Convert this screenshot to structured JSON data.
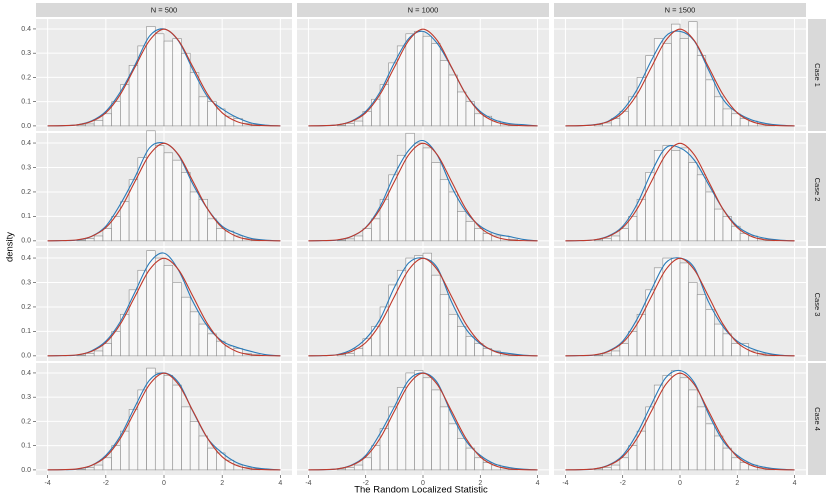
{
  "chart_data": {
    "type": "histogram",
    "x_label": "The Random Localized Statistic",
    "y_label": "density",
    "col_labels": [
      "N = 500",
      "N = 1000",
      "N = 1500"
    ],
    "row_labels": [
      "Case 1",
      "Case 2",
      "Case 3",
      "Case 4"
    ],
    "xlim": [
      -4.4,
      4.4
    ],
    "xticks": [
      -4,
      -2,
      0,
      2,
      4
    ],
    "ylim": [
      -0.021,
      0.441
    ],
    "yticks": [
      {
        "value": 0,
        "label": "0.0"
      },
      0.1,
      0.2,
      0.3,
      0.4
    ],
    "grid": true,
    "bar_color": "#8c8c8c",
    "kde_color": "#2a7ab8",
    "normal_color": "#c0392b",
    "bins": [
      -3,
      -2.7,
      -2.4,
      -2.1,
      -1.8,
      -1.5,
      -1.2,
      -0.9,
      -0.6,
      -0.3,
      0,
      0.3,
      0.6,
      0.9,
      1.2,
      1.5,
      1.8,
      2.1,
      2.4,
      2.7,
      3,
      3.3
    ],
    "curve_x": [
      -4,
      -3.5,
      -3,
      -2.5,
      -2,
      -1.5,
      -1,
      -0.5,
      0,
      0.5,
      1,
      1.5,
      2,
      2.5,
      3,
      3.5,
      4
    ],
    "normal": [
      0.0001,
      0.001,
      0.004,
      0.018,
      0.054,
      0.13,
      0.242,
      0.352,
      0.399,
      0.352,
      0.242,
      0.13,
      0.054,
      0.018,
      0.004,
      0.001,
      0.0001
    ],
    "panels": [
      {
        "counts": [
          0.004,
          0.008,
          0.022,
          0.05,
          0.1,
          0.17,
          0.25,
          0.33,
          0.41,
          0.38,
          0.35,
          0.36,
          0.3,
          0.22,
          0.12,
          0.1,
          0.07,
          0.04,
          0.03,
          0.01,
          0.005
        ],
        "kde": [
          0,
          0.001,
          0.004,
          0.02,
          0.06,
          0.14,
          0.25,
          0.37,
          0.4,
          0.35,
          0.23,
          0.12,
          0.07,
          0.035,
          0.012,
          0.003,
          0
        ]
      },
      {
        "counts": [
          0.003,
          0.01,
          0.02,
          0.06,
          0.11,
          0.17,
          0.26,
          0.33,
          0.38,
          0.39,
          0.37,
          0.34,
          0.27,
          0.21,
          0.14,
          0.1,
          0.05,
          0.04,
          0.02,
          0.01,
          0.006
        ],
        "kde": [
          0,
          0.001,
          0.004,
          0.02,
          0.06,
          0.14,
          0.26,
          0.36,
          0.39,
          0.34,
          0.24,
          0.13,
          0.06,
          0.025,
          0.01,
          0.005,
          0
        ]
      },
      {
        "counts": [
          0.005,
          0.012,
          0.03,
          0.06,
          0.12,
          0.2,
          0.29,
          0.36,
          0.34,
          0.42,
          0.36,
          0.43,
          0.29,
          0.19,
          0.12,
          0.07,
          0.05,
          0.03,
          0.02,
          0.01,
          0.004
        ],
        "kde": [
          0,
          0.001,
          0.005,
          0.02,
          0.065,
          0.15,
          0.27,
          0.37,
          0.39,
          0.35,
          0.23,
          0.11,
          0.055,
          0.025,
          0.01,
          0.003,
          0
        ]
      },
      {
        "counts": [
          0.003,
          0.009,
          0.02,
          0.05,
          0.1,
          0.16,
          0.25,
          0.34,
          0.45,
          0.39,
          0.36,
          0.33,
          0.28,
          0.2,
          0.17,
          0.09,
          0.05,
          0.04,
          0.02,
          0.01,
          0.005
        ],
        "kde": [
          0,
          0.001,
          0.003,
          0.018,
          0.06,
          0.15,
          0.26,
          0.38,
          0.4,
          0.35,
          0.23,
          0.13,
          0.06,
          0.03,
          0.01,
          0.003,
          0
        ]
      },
      {
        "counts": [
          0.003,
          0.008,
          0.02,
          0.05,
          0.09,
          0.17,
          0.27,
          0.35,
          0.44,
          0.4,
          0.38,
          0.32,
          0.25,
          0.2,
          0.12,
          0.08,
          0.05,
          0.03,
          0.02,
          0.02,
          0.006
        ],
        "kde": [
          0,
          0.001,
          0.003,
          0.018,
          0.055,
          0.14,
          0.27,
          0.37,
          0.41,
          0.35,
          0.22,
          0.12,
          0.06,
          0.03,
          0.018,
          0.006,
          0
        ]
      },
      {
        "counts": [
          0.004,
          0.01,
          0.02,
          0.05,
          0.1,
          0.17,
          0.28,
          0.37,
          0.39,
          0.37,
          0.38,
          0.32,
          0.27,
          0.2,
          0.13,
          0.1,
          0.06,
          0.03,
          0.02,
          0.01,
          0.005
        ],
        "kde": [
          0,
          0.001,
          0.004,
          0.02,
          0.06,
          0.15,
          0.28,
          0.38,
          0.38,
          0.33,
          0.23,
          0.13,
          0.06,
          0.025,
          0.01,
          0.003,
          0
        ]
      },
      {
        "counts": [
          0.003,
          0.01,
          0.02,
          0.05,
          0.1,
          0.17,
          0.27,
          0.35,
          0.43,
          0.4,
          0.37,
          0.3,
          0.24,
          0.18,
          0.13,
          0.09,
          0.06,
          0.04,
          0.03,
          0.01,
          0.005
        ],
        "kde": [
          0,
          0.001,
          0.003,
          0.02,
          0.06,
          0.14,
          0.26,
          0.38,
          0.42,
          0.35,
          0.22,
          0.12,
          0.06,
          0.035,
          0.018,
          0.005,
          0
        ]
      },
      {
        "counts": [
          0.005,
          0.01,
          0.03,
          0.07,
          0.12,
          0.2,
          0.29,
          0.35,
          0.4,
          0.41,
          0.42,
          0.33,
          0.25,
          0.17,
          0.12,
          0.08,
          0.05,
          0.03,
          0.02,
          0.01,
          0.004
        ],
        "kde": [
          0,
          0.001,
          0.005,
          0.025,
          0.07,
          0.15,
          0.28,
          0.38,
          0.4,
          0.36,
          0.22,
          0.11,
          0.05,
          0.02,
          0.01,
          0.003,
          0
        ]
      },
      {
        "counts": [
          0.003,
          0.008,
          0.02,
          0.05,
          0.1,
          0.17,
          0.27,
          0.36,
          0.4,
          0.4,
          0.38,
          0.3,
          0.25,
          0.19,
          0.13,
          0.09,
          0.05,
          0.05,
          0.02,
          0.01,
          0.004
        ],
        "kde": [
          0,
          0.001,
          0.003,
          0.02,
          0.06,
          0.15,
          0.27,
          0.38,
          0.4,
          0.36,
          0.22,
          0.12,
          0.06,
          0.03,
          0.012,
          0.003,
          0
        ]
      },
      {
        "counts": [
          0.003,
          0.009,
          0.02,
          0.05,
          0.1,
          0.16,
          0.25,
          0.33,
          0.42,
          0.4,
          0.39,
          0.35,
          0.26,
          0.2,
          0.14,
          0.09,
          0.07,
          0.04,
          0.02,
          0.01,
          0.005
        ],
        "kde": [
          0,
          0.001,
          0.003,
          0.018,
          0.06,
          0.14,
          0.26,
          0.37,
          0.4,
          0.36,
          0.24,
          0.13,
          0.07,
          0.03,
          0.012,
          0.004,
          0
        ]
      },
      {
        "counts": [
          0.004,
          0.01,
          0.02,
          0.05,
          0.1,
          0.17,
          0.26,
          0.34,
          0.4,
          0.41,
          0.38,
          0.33,
          0.26,
          0.19,
          0.13,
          0.09,
          0.05,
          0.03,
          0.02,
          0.01,
          0.004
        ],
        "kde": [
          0,
          0.001,
          0.004,
          0.02,
          0.06,
          0.15,
          0.26,
          0.37,
          0.4,
          0.36,
          0.23,
          0.12,
          0.06,
          0.025,
          0.01,
          0.003,
          0
        ]
      },
      {
        "counts": [
          0.004,
          0.01,
          0.02,
          0.05,
          0.1,
          0.16,
          0.26,
          0.35,
          0.39,
          0.41,
          0.38,
          0.33,
          0.26,
          0.19,
          0.14,
          0.09,
          0.05,
          0.03,
          0.02,
          0.01,
          0.004
        ],
        "kde": [
          0,
          0.001,
          0.004,
          0.02,
          0.06,
          0.15,
          0.27,
          0.38,
          0.41,
          0.36,
          0.23,
          0.12,
          0.06,
          0.025,
          0.01,
          0.003,
          0
        ]
      }
    ]
  }
}
